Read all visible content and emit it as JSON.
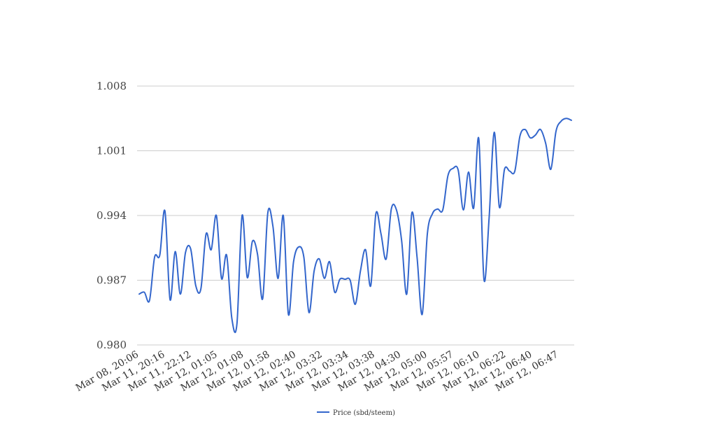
{
  "chart_data": {
    "type": "line",
    "title": "",
    "xlabel": "",
    "ylabel": "",
    "ylim": [
      0.98,
      1.008
    ],
    "y_ticks": [
      "0.980",
      "0.987",
      "0.994",
      "1.001",
      "1.008"
    ],
    "grid": true,
    "legend_position": "bottom-center",
    "x_tick_labels": [
      "Mar 08, 20:06",
      "Mar 11, 20:16",
      "Mar 11, 22:12",
      "Mar 12, 01:05",
      "Mar 12, 01:08",
      "Mar 12, 01:58",
      "Mar 12, 02:40",
      "Mar 12, 03:32",
      "Mar 12, 03:34",
      "Mar 12, 03:38",
      "Mar 12, 04:30",
      "Mar 12, 05:00",
      "Mar 12, 05:57",
      "Mar 12, 06:10",
      "Mar 12, 06:22",
      "Mar 12, 06:40",
      "Mar 12, 06:47"
    ],
    "series": [
      {
        "name": "Price (sbd/steem)",
        "color": "#3366cc",
        "values": [
          0.9855,
          0.9857,
          0.9848,
          0.9895,
          0.9897,
          0.9945,
          0.9849,
          0.9901,
          0.9855,
          0.99,
          0.9904,
          0.9864,
          0.9861,
          0.992,
          0.9903,
          0.994,
          0.9872,
          0.9897,
          0.9829,
          0.9823,
          0.994,
          0.9873,
          0.9912,
          0.9898,
          0.985,
          0.9943,
          0.9928,
          0.9872,
          0.994,
          0.9833,
          0.989,
          0.9906,
          0.9895,
          0.9835,
          0.988,
          0.9893,
          0.9872,
          0.989,
          0.9857,
          0.9871,
          0.9871,
          0.987,
          0.9844,
          0.988,
          0.9903,
          0.9864,
          0.9942,
          0.992,
          0.9893,
          0.9947,
          0.9946,
          0.9913,
          0.9855,
          0.9943,
          0.9895,
          0.9833,
          0.992,
          0.9942,
          0.9947,
          0.9946,
          0.9983,
          0.9991,
          0.9989,
          0.9946,
          0.9987,
          0.9948,
          1.0023,
          0.9871,
          0.9937,
          1.003,
          0.9949,
          0.999,
          0.9988,
          0.9988,
          1.0026,
          1.0033,
          1.0024,
          1.0027,
          1.0033,
          1.0018,
          0.999,
          1.0031,
          1.0042,
          1.0045,
          1.0043
        ]
      }
    ]
  }
}
